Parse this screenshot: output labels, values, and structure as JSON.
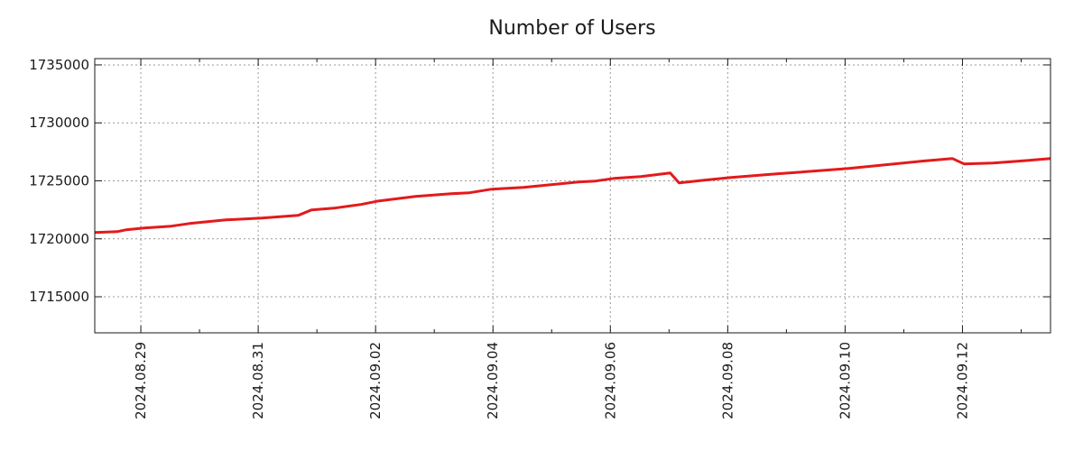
{
  "chart_data": {
    "type": "line",
    "title": "Number of Users",
    "xlabel": "",
    "ylabel": "",
    "x_unit": "days since 2024-08-29",
    "xlim": [
      -0.785,
      15.5
    ],
    "ylim": [
      1711890,
      1735540
    ],
    "grid": true,
    "line_color": "#e31a1c",
    "y_ticks": [
      1715000,
      1720000,
      1725000,
      1730000,
      1735000
    ],
    "y_tick_labels": [
      "1715000",
      "1720000",
      "1725000",
      "1730000",
      "1735000"
    ],
    "x_ticks": [
      0,
      2,
      4,
      6,
      8,
      10,
      12,
      14
    ],
    "x_tick_labels": [
      "2024.08.29",
      "2024.08.31",
      "2024.09.02",
      "2024.09.04",
      "2024.09.06",
      "2024.09.08",
      "2024.09.10",
      "2024.09.12"
    ],
    "x_minor_ticks": [
      -1,
      1,
      3,
      5,
      7,
      9,
      11,
      13,
      15
    ],
    "series": [
      {
        "name": "Number of Users",
        "x": [
          -0.785,
          -0.4,
          -0.246,
          0.06,
          0.52,
          0.83,
          1.45,
          2.06,
          2.68,
          2.91,
          3.29,
          3.75,
          4.06,
          4.68,
          5.29,
          5.6,
          5.98,
          6.52,
          7.45,
          7.75,
          8.06,
          8.52,
          9.02,
          9.17,
          9.6,
          10.06,
          10.83,
          11.45,
          12.06,
          12.68,
          13.29,
          13.83,
          14.03,
          14.52,
          15.14,
          15.5
        ],
        "values": [
          1720544,
          1720620,
          1720780,
          1720930,
          1721090,
          1721320,
          1721630,
          1721790,
          1722020,
          1722490,
          1722640,
          1722960,
          1723270,
          1723650,
          1723890,
          1723970,
          1724280,
          1724430,
          1724900,
          1724980,
          1725210,
          1725370,
          1725680,
          1724820,
          1725050,
          1725290,
          1725600,
          1725830,
          1726070,
          1726380,
          1726690,
          1726920,
          1726450,
          1726530,
          1726770,
          1726920
        ]
      }
    ]
  }
}
